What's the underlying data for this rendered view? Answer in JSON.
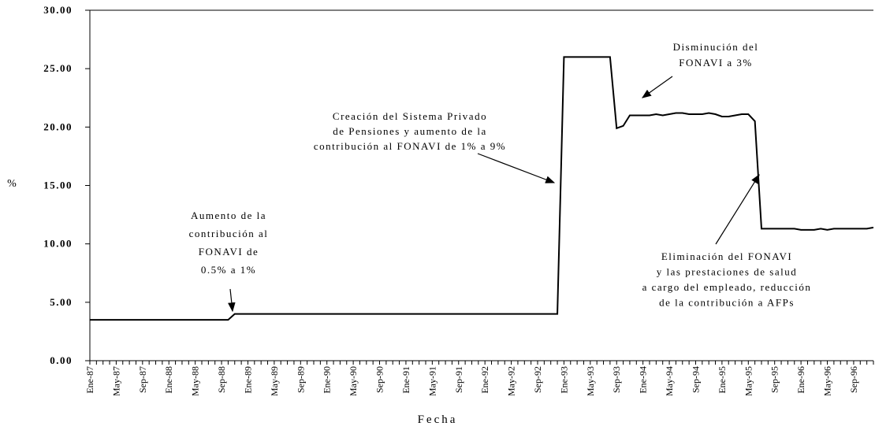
{
  "chart_data": {
    "type": "line",
    "x_label": "Fecha",
    "y_label": "%",
    "categories": [
      "Ene-87",
      null,
      null,
      null,
      "May-87",
      null,
      null,
      null,
      "Sep-87",
      null,
      null,
      null,
      "Ene-88",
      null,
      null,
      null,
      "May-88",
      null,
      null,
      null,
      "Sep-88",
      null,
      null,
      null,
      "Ene-89",
      null,
      null,
      null,
      "May-89",
      null,
      null,
      null,
      "Sep-89",
      null,
      null,
      null,
      "Ene-90",
      null,
      null,
      null,
      "May-90",
      null,
      null,
      null,
      "Sep-90",
      null,
      null,
      null,
      "Ene-91",
      null,
      null,
      null,
      "May-91",
      null,
      null,
      null,
      "Sep-91",
      null,
      null,
      null,
      "Ene-92",
      null,
      null,
      null,
      "May-92",
      null,
      null,
      null,
      "Sep-92",
      null,
      null,
      null,
      "Ene-93",
      null,
      null,
      null,
      "May-93",
      null,
      null,
      null,
      "Sep-93",
      null,
      null,
      null,
      "Ene-94",
      null,
      null,
      null,
      "May-94",
      null,
      null,
      null,
      "Sep-94",
      null,
      null,
      null,
      "Ene-95",
      null,
      null,
      null,
      "May-95",
      null,
      null,
      null,
      "Sep-95",
      null,
      null,
      null,
      "Ene-96",
      null,
      null,
      null,
      "May-96",
      null,
      null,
      null,
      "Sep-96",
      null,
      null,
      null
    ],
    "values": [
      3.5,
      3.5,
      3.5,
      3.5,
      3.5,
      3.5,
      3.5,
      3.5,
      3.5,
      3.5,
      3.5,
      3.5,
      3.5,
      3.5,
      3.5,
      3.5,
      3.5,
      3.5,
      3.5,
      3.5,
      3.5,
      3.5,
      4.0,
      4.0,
      4.0,
      4.0,
      4.0,
      4.0,
      4.0,
      4.0,
      4.0,
      4.0,
      4.0,
      4.0,
      4.0,
      4.0,
      4.0,
      4.0,
      4.0,
      4.0,
      4.0,
      4.0,
      4.0,
      4.0,
      4.0,
      4.0,
      4.0,
      4.0,
      4.0,
      4.0,
      4.0,
      4.0,
      4.0,
      4.0,
      4.0,
      4.0,
      4.0,
      4.0,
      4.0,
      4.0,
      4.0,
      4.0,
      4.0,
      4.0,
      4.0,
      4.0,
      4.0,
      4.0,
      4.0,
      4.0,
      4.0,
      4.0,
      26.0,
      26.0,
      26.0,
      26.0,
      26.0,
      26.0,
      26.0,
      26.0,
      19.9,
      20.1,
      21.0,
      21.0,
      21.0,
      21.0,
      21.1,
      21.0,
      21.1,
      21.2,
      21.2,
      21.1,
      21.1,
      21.1,
      21.2,
      21.1,
      20.9,
      20.9,
      21.0,
      21.1,
      21.1,
      20.5,
      11.3,
      11.3,
      11.3,
      11.3,
      11.3,
      11.3,
      11.2,
      11.2,
      11.2,
      11.3,
      11.2,
      11.3,
      11.3,
      11.3,
      11.3,
      11.3,
      11.3,
      11.4
    ],
    "color": "#000000",
    "ylim": [
      0,
      30
    ],
    "yticks": [
      {
        "value": 0,
        "label": "0.00"
      },
      {
        "value": 5,
        "label": "5.00"
      },
      {
        "value": 10,
        "label": "10.00"
      },
      {
        "value": 15,
        "label": "15.00"
      },
      {
        "value": 20,
        "label": "20.00"
      },
      {
        "value": 25,
        "label": "25.00"
      },
      {
        "value": 30,
        "label": "30.00"
      }
    ],
    "annotations": [
      {
        "lines": [
          "Aumento de la",
          "contribución al",
          "FONAVI de",
          "0.5% a 1%"
        ]
      },
      {
        "lines": [
          "Creación del Sistema Privado",
          "de Pensiones y aumento de la",
          "contribución al FONAVI de 1% a 9%"
        ]
      },
      {
        "lines": [
          "Disminución del",
          "FONAVI a 3%"
        ]
      },
      {
        "lines": [
          "Eliminación del FONAVI",
          "y las prestaciones de salud",
          "a cargo del empleado, reducción",
          "de la contribución a AFPs"
        ]
      }
    ]
  }
}
